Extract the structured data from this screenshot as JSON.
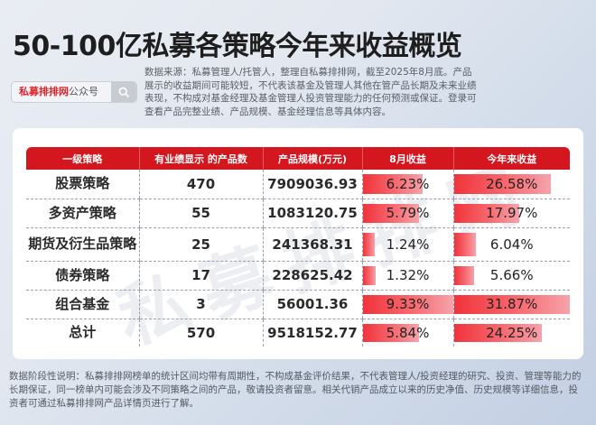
{
  "title": "50-100亿私募各策略今年来收益概览",
  "search": {
    "brand": "私募排排网",
    "suffix": "公众号",
    "icon": "search-icon"
  },
  "description": "数据来源：私募管理人/托管人，整理自私募排排网，截至2025年8月底。产品展示的收益期间可能较短，不代表该基金及管理人其他在管产品长期及未来业绩表现，不构成对基金经理及基金管理人投资管理能力的任何预测或保证。登录可查看产品完整业绩、产品规模、基金经理信息等具体内容。",
  "watermark": "私募排排网",
  "table": {
    "headers": [
      "一级策略",
      "有业绩显示 的产品数",
      "产品规模(万元)",
      "8月收益",
      "今年来收益"
    ],
    "rows": [
      {
        "strategy": "股票策略",
        "count": "470",
        "scale": "7909036.93",
        "aug": "6.23%",
        "ytd": "26.58%",
        "aug_pct": 6.23,
        "ytd_pct": 26.58
      },
      {
        "strategy": "多资产策略",
        "count": "55",
        "scale": "1083120.75",
        "aug": "5.79%",
        "ytd": "17.97%",
        "aug_pct": 5.79,
        "ytd_pct": 17.97
      },
      {
        "strategy": "期货及衍生品策略",
        "count": "25",
        "scale": "241368.31",
        "aug": "1.24%",
        "ytd": "6.04%",
        "aug_pct": 1.24,
        "ytd_pct": 6.04
      },
      {
        "strategy": "债券策略",
        "count": "17",
        "scale": "228625.42",
        "aug": "1.32%",
        "ytd": "5.66%",
        "aug_pct": 1.32,
        "ytd_pct": 5.66
      },
      {
        "strategy": "组合基金",
        "count": "3",
        "scale": "56001.36",
        "aug": "9.33%",
        "ytd": "31.87%",
        "aug_pct": 9.33,
        "ytd_pct": 31.87
      },
      {
        "strategy": "总计",
        "count": "570",
        "scale": "9518152.77",
        "aug": "5.84%",
        "ytd": "24.25%",
        "aug_pct": 5.84,
        "ytd_pct": 24.25
      }
    ]
  },
  "footnote": "数据阶段性说明：私募排排网榜单的统计区间均带有周期性，不构成基金评价结果，不代表管理人/投资经理的研究、投资、管理等能力的长期保证，同一榜单内可能会涉及不同策略之间的产品，敬请投资者留意。相关代销产品成立以来的历史净值、历史规模等详细信息，投资者可通过私募排排网产品详情页进行了解。",
  "colors": {
    "header_red": "#d4161f",
    "bar_start": "#f0333b",
    "bar_end": "#f6a3ab",
    "brand_red": "#d9262c"
  },
  "chart_data": {
    "type": "table",
    "title": "50-100亿私募各策略今年来收益概览",
    "columns": [
      "一级策略",
      "有业绩显示 的产品数",
      "产品规模(万元)",
      "8月收益",
      "今年来收益"
    ],
    "categories": [
      "股票策略",
      "多资产策略",
      "期货及衍生品策略",
      "债券策略",
      "组合基金",
      "总计"
    ],
    "series": [
      {
        "name": "有业绩显示 的产品数",
        "values": [
          470,
          55,
          25,
          17,
          3,
          570
        ]
      },
      {
        "name": "产品规模(万元)",
        "values": [
          7909036.93,
          1083120.75,
          241368.31,
          228625.42,
          56001.36,
          9518152.77
        ]
      },
      {
        "name": "8月收益(%)",
        "values": [
          6.23,
          5.79,
          1.24,
          1.32,
          9.33,
          5.84
        ]
      },
      {
        "name": "今年来收益(%)",
        "values": [
          26.58,
          17.97,
          6.04,
          5.66,
          31.87,
          24.25
        ]
      }
    ],
    "notes": "8月收益 and 今年来收益 columns render in-cell data bars scaled to the column max"
  }
}
